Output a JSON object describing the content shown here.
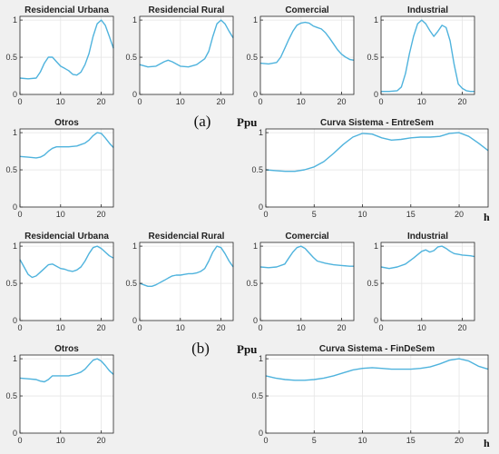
{
  "colors": {
    "line": "#4fb3dd",
    "axis": "#262626",
    "grid": "#e6e6e6",
    "background": "#f0f0f0"
  },
  "labels": {
    "a": "(a)",
    "b": "(b)",
    "ylabel": "Ppu",
    "xlabel": "h"
  },
  "chart_data": [
    {
      "type": "line",
      "title": "Residencial Urbana",
      "x": [
        0,
        2,
        4,
        5,
        6,
        7,
        8,
        9,
        10,
        11,
        12,
        13,
        14,
        15,
        16,
        17,
        18,
        19,
        20,
        21,
        22,
        23
      ],
      "values": [
        0.22,
        0.21,
        0.22,
        0.3,
        0.42,
        0.5,
        0.5,
        0.44,
        0.38,
        0.35,
        0.32,
        0.27,
        0.26,
        0.3,
        0.4,
        0.55,
        0.78,
        0.95,
        1.0,
        0.93,
        0.78,
        0.62
      ],
      "xlim": [
        0,
        23
      ],
      "ylim": [
        0,
        1.05
      ],
      "xticks": [
        0,
        10,
        20
      ],
      "yticks": [
        0,
        0.5,
        1
      ],
      "yticklabels": [
        "0",
        "0.5",
        "1"
      ],
      "grid": true
    },
    {
      "type": "line",
      "title": "Residencial Rural",
      "x": [
        0,
        2,
        4,
        6,
        7,
        8,
        10,
        12,
        14,
        16,
        17,
        18,
        19,
        20,
        21,
        22,
        23
      ],
      "values": [
        0.4,
        0.37,
        0.38,
        0.44,
        0.46,
        0.44,
        0.38,
        0.37,
        0.4,
        0.48,
        0.58,
        0.78,
        0.95,
        1.0,
        0.95,
        0.85,
        0.76
      ],
      "xlim": [
        0,
        23
      ],
      "ylim": [
        0,
        1.05
      ],
      "xticks": [
        0,
        10,
        20
      ],
      "yticks": [
        0,
        0.5,
        1
      ],
      "yticklabels": [
        "0",
        "0.5",
        "1"
      ],
      "grid": true
    },
    {
      "type": "line",
      "title": "Comercial",
      "x": [
        0,
        2,
        4,
        5,
        6,
        7,
        8,
        9,
        10,
        11,
        12,
        13,
        14,
        15,
        16,
        17,
        18,
        19,
        20,
        21,
        22,
        23
      ],
      "values": [
        0.42,
        0.41,
        0.43,
        0.5,
        0.62,
        0.74,
        0.85,
        0.93,
        0.96,
        0.97,
        0.96,
        0.92,
        0.9,
        0.88,
        0.83,
        0.76,
        0.68,
        0.6,
        0.54,
        0.5,
        0.47,
        0.46
      ],
      "xlim": [
        0,
        23
      ],
      "ylim": [
        0,
        1.05
      ],
      "xticks": [
        0,
        10,
        20
      ],
      "yticks": [
        0,
        0.5,
        1
      ],
      "yticklabels": [
        "0",
        "0.5",
        "1"
      ],
      "grid": true
    },
    {
      "type": "line",
      "title": "Industrial",
      "x": [
        0,
        2,
        4,
        5,
        6,
        7,
        8,
        9,
        10,
        11,
        12,
        13,
        14,
        15,
        16,
        17,
        18,
        19,
        20,
        21,
        22,
        23
      ],
      "values": [
        0.04,
        0.04,
        0.05,
        0.1,
        0.28,
        0.55,
        0.78,
        0.95,
        1.0,
        0.95,
        0.86,
        0.78,
        0.85,
        0.93,
        0.9,
        0.72,
        0.4,
        0.14,
        0.08,
        0.05,
        0.04,
        0.04
      ],
      "xlim": [
        0,
        23
      ],
      "ylim": [
        0,
        1.05
      ],
      "xticks": [
        0,
        10,
        20
      ],
      "yticks": [
        0,
        0.5,
        1
      ],
      "yticklabels": [
        "0",
        "0.5",
        "1"
      ],
      "grid": true
    },
    {
      "type": "line",
      "title": "Otros",
      "x": [
        0,
        2,
        4,
        5,
        6,
        7,
        8,
        9,
        10,
        12,
        14,
        15,
        16,
        17,
        18,
        19,
        20,
        21,
        22,
        23
      ],
      "values": [
        0.68,
        0.67,
        0.66,
        0.67,
        0.7,
        0.75,
        0.79,
        0.81,
        0.81,
        0.81,
        0.82,
        0.84,
        0.86,
        0.9,
        0.96,
        1.0,
        0.99,
        0.93,
        0.86,
        0.8
      ],
      "xlim": [
        0,
        23
      ],
      "ylim": [
        0,
        1.05
      ],
      "xticks": [
        0,
        10,
        20
      ],
      "yticks": [
        0,
        0.5,
        1
      ],
      "yticklabels": [
        "0",
        "0.5",
        "1"
      ],
      "grid": true
    },
    {
      "type": "line",
      "title": "Curva Sistema - EntreSem",
      "x": [
        0,
        1,
        2,
        3,
        4,
        5,
        6,
        7,
        8,
        9,
        10,
        11,
        12,
        13,
        14,
        15,
        16,
        17,
        18,
        19,
        20,
        21,
        22,
        23
      ],
      "values": [
        0.5,
        0.49,
        0.48,
        0.48,
        0.5,
        0.54,
        0.61,
        0.72,
        0.84,
        0.94,
        0.99,
        0.98,
        0.93,
        0.9,
        0.91,
        0.93,
        0.94,
        0.94,
        0.95,
        0.99,
        1.0,
        0.95,
        0.86,
        0.76
      ],
      "xlim": [
        0,
        23
      ],
      "ylim": [
        0,
        1.05
      ],
      "xticks": [
        0,
        5,
        10,
        15,
        20
      ],
      "yticks": [
        0,
        0.5,
        1
      ],
      "yticklabels": [
        "0",
        "0.5",
        "1"
      ],
      "grid": true
    },
    {
      "type": "line",
      "title": "Residencial Urbana",
      "x": [
        0,
        1,
        2,
        3,
        4,
        5,
        6,
        7,
        8,
        9,
        10,
        11,
        12,
        13,
        14,
        15,
        16,
        17,
        18,
        19,
        20,
        21,
        22,
        23
      ],
      "values": [
        0.82,
        0.72,
        0.62,
        0.58,
        0.6,
        0.65,
        0.7,
        0.75,
        0.76,
        0.73,
        0.7,
        0.69,
        0.67,
        0.66,
        0.68,
        0.72,
        0.8,
        0.9,
        0.98,
        1.0,
        0.97,
        0.92,
        0.87,
        0.84
      ],
      "xlim": [
        0,
        23
      ],
      "ylim": [
        0,
        1.05
      ],
      "xticks": [
        0,
        10,
        20
      ],
      "yticks": [
        0,
        0.5,
        1
      ],
      "yticklabels": [
        "0",
        "0.5",
        "1"
      ],
      "grid": true
    },
    {
      "type": "line",
      "title": "Residencial Rural",
      "x": [
        0,
        1,
        2,
        3,
        4,
        5,
        6,
        7,
        8,
        9,
        10,
        11,
        12,
        13,
        14,
        15,
        16,
        17,
        18,
        19,
        20,
        21,
        22,
        23
      ],
      "values": [
        0.5,
        0.48,
        0.46,
        0.46,
        0.48,
        0.51,
        0.54,
        0.57,
        0.6,
        0.61,
        0.61,
        0.62,
        0.63,
        0.63,
        0.64,
        0.66,
        0.7,
        0.8,
        0.92,
        1.0,
        0.98,
        0.9,
        0.8,
        0.72
      ],
      "xlim": [
        0,
        23
      ],
      "ylim": [
        0,
        1.05
      ],
      "xticks": [
        0,
        10,
        20
      ],
      "yticks": [
        0,
        0.5,
        1
      ],
      "yticklabels": [
        "0",
        "0.5",
        "1"
      ],
      "grid": true
    },
    {
      "type": "line",
      "title": "Comercial",
      "x": [
        0,
        2,
        4,
        6,
        7,
        8,
        9,
        10,
        11,
        12,
        13,
        14,
        16,
        18,
        20,
        22,
        23
      ],
      "values": [
        0.72,
        0.71,
        0.72,
        0.76,
        0.84,
        0.92,
        0.98,
        1.0,
        0.97,
        0.91,
        0.85,
        0.8,
        0.77,
        0.75,
        0.74,
        0.73,
        0.73
      ],
      "xlim": [
        0,
        23
      ],
      "ylim": [
        0,
        1.05
      ],
      "xticks": [
        0,
        10,
        20
      ],
      "yticks": [
        0,
        0.5,
        1
      ],
      "yticklabels": [
        "0",
        "0.5",
        "1"
      ],
      "grid": true
    },
    {
      "type": "line",
      "title": "Industrial",
      "x": [
        0,
        2,
        4,
        6,
        8,
        10,
        11,
        12,
        13,
        14,
        15,
        16,
        17,
        18,
        19,
        20,
        22,
        23
      ],
      "values": [
        0.72,
        0.7,
        0.72,
        0.76,
        0.84,
        0.93,
        0.95,
        0.92,
        0.94,
        0.99,
        1.0,
        0.97,
        0.93,
        0.9,
        0.89,
        0.88,
        0.87,
        0.86
      ],
      "xlim": [
        0,
        23
      ],
      "ylim": [
        0,
        1.05
      ],
      "xticks": [
        0,
        10,
        20
      ],
      "yticks": [
        0,
        0.5,
        1
      ],
      "yticklabels": [
        "0",
        "0.5",
        "1"
      ],
      "grid": true
    },
    {
      "type": "line",
      "title": "Otros",
      "x": [
        0,
        2,
        4,
        5,
        6,
        7,
        8,
        10,
        12,
        14,
        15,
        16,
        17,
        18,
        19,
        20,
        21,
        22,
        23
      ],
      "values": [
        0.74,
        0.73,
        0.72,
        0.7,
        0.69,
        0.72,
        0.77,
        0.77,
        0.77,
        0.8,
        0.82,
        0.86,
        0.92,
        0.98,
        1.0,
        0.97,
        0.91,
        0.84,
        0.79
      ],
      "xlim": [
        0,
        23
      ],
      "ylim": [
        0,
        1.05
      ],
      "xticks": [
        0,
        10,
        20
      ],
      "yticks": [
        0,
        0.5,
        1
      ],
      "yticklabels": [
        "0",
        "0.5",
        "1"
      ],
      "grid": true
    },
    {
      "type": "line",
      "title": "Curva Sistema - FinDeSem",
      "x": [
        0,
        1,
        2,
        3,
        4,
        5,
        6,
        7,
        8,
        9,
        10,
        11,
        12,
        13,
        14,
        15,
        16,
        17,
        18,
        19,
        20,
        21,
        22,
        23
      ],
      "values": [
        0.77,
        0.74,
        0.72,
        0.71,
        0.71,
        0.72,
        0.74,
        0.77,
        0.81,
        0.85,
        0.87,
        0.88,
        0.87,
        0.86,
        0.86,
        0.86,
        0.87,
        0.89,
        0.93,
        0.98,
        1.0,
        0.97,
        0.9,
        0.86
      ],
      "xlim": [
        0,
        23
      ],
      "ylim": [
        0,
        1.05
      ],
      "xticks": [
        0,
        5,
        10,
        15,
        20
      ],
      "yticks": [
        0,
        0.5,
        1
      ],
      "yticklabels": [
        "0",
        "0.5",
        "1"
      ],
      "grid": true
    }
  ]
}
